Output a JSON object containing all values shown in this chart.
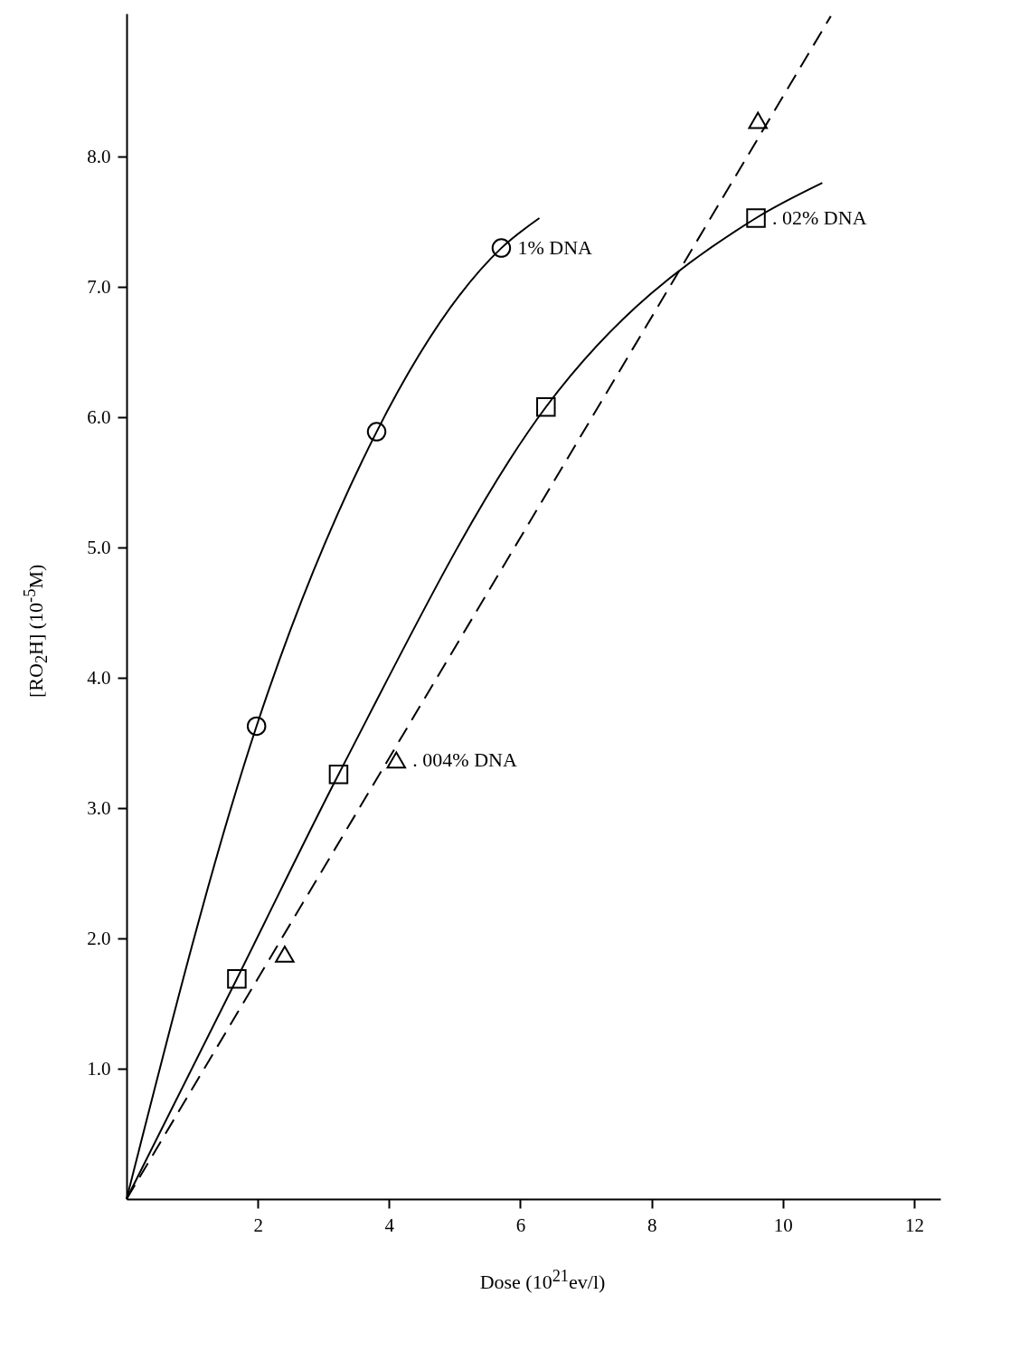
{
  "chart_data": {
    "type": "line",
    "xlabel": "Dose (10$^{21}$ev/l)",
    "ylabel": "[RO$_{2}$H] (10$^{-5}$M)",
    "xlim": [
      0,
      12.4
    ],
    "ylim": [
      0,
      9.1
    ],
    "xticks": [
      2,
      4,
      6,
      8,
      10,
      12
    ],
    "yticks": [
      {
        "value": 1,
        "label": "1.0"
      },
      {
        "value": 2,
        "label": "2.0"
      },
      {
        "value": 3,
        "label": "3.0"
      },
      {
        "value": 4,
        "label": "4.0"
      },
      {
        "value": 5,
        "label": "5.0"
      },
      {
        "value": 6,
        "label": "6.0"
      },
      {
        "value": 7,
        "label": "7.0"
      },
      {
        "value": 8,
        "label": "8.0"
      }
    ],
    "grid": false,
    "series": [
      {
        "color": "#000000",
        "x": [
          0,
          1.98,
          3.81,
          5.71,
          6.29
        ],
        "values": [
          0,
          3.63,
          5.89,
          7.3,
          7.53
        ]
      },
      {
        "type": "scatter",
        "color": "#000000",
        "marker": "circle",
        "x": [
          1.98,
          3.81,
          5.71
        ],
        "values": [
          3.63,
          5.89,
          7.3
        ]
      },
      {
        "color": "#000000",
        "x": [
          0,
          1.68,
          3.23,
          6.39,
          9.59,
          10.6
        ],
        "values": [
          0,
          1.69,
          3.26,
          6.08,
          7.53,
          7.8
        ]
      },
      {
        "type": "scatter",
        "color": "#000000",
        "marker": "square",
        "x": [
          1.68,
          3.23,
          6.39,
          9.59
        ],
        "values": [
          1.69,
          3.26,
          6.08,
          7.53
        ]
      },
      {
        "color": "#000000",
        "line_style": "dashed",
        "x": [
          0,
          10.73
        ],
        "values": [
          0,
          9.08
        ]
      },
      {
        "type": "scatter",
        "color": "#000000",
        "marker": "triangle",
        "x": [
          2.41,
          4.11,
          9.62
        ],
        "values": [
          1.88,
          3.37,
          8.28
        ]
      }
    ],
    "annotations": [
      {
        "text": "1% DNA",
        "x": 5.71,
        "y": 7.3
      },
      {
        "text": ". 02% DNA",
        "x": 9.59,
        "y": 7.53
      },
      {
        "text": ". 004% DNA",
        "x": 4.11,
        "y": 3.37
      }
    ]
  }
}
